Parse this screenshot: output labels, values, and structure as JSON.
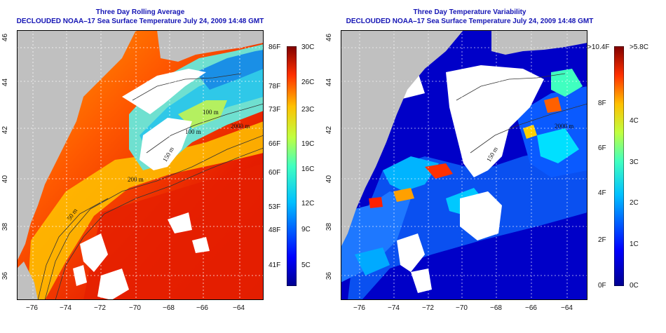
{
  "left_panel": {
    "title_line1": "Three Day Rolling Average",
    "title_line2": "DECLOUDED NOAA–17 Sea Surface Temperature July 24, 2009 14:48 GMT",
    "x_ticks": [
      "−76",
      "−74",
      "−72",
      "−70",
      "−68",
      "−66",
      "−64"
    ],
    "y_ticks": [
      "46",
      "44",
      "42",
      "40",
      "38",
      "36"
    ],
    "contour_labels": [
      "100 m",
      "2000 m",
      "100 m",
      "150 m",
      "200 m",
      "50 m"
    ],
    "colorbar": {
      "fahrenheit": [
        "86F",
        "78F",
        "73F",
        "66F",
        "60F",
        "53F",
        "48F",
        "41F"
      ],
      "celsius": [
        "30C",
        "26C",
        "23C",
        "19C",
        "16C",
        "12C",
        "9C",
        "5C"
      ]
    }
  },
  "right_panel": {
    "title_line1": "Three Day Temperature Variability",
    "title_line2": "DECLOUDED NOAA–17 Sea Surface Temperature July 24, 2009 14:48 GMT",
    "x_ticks": [
      "−76",
      "−74",
      "−72",
      "−70",
      "−68",
      "−66",
      "−64"
    ],
    "y_ticks": [
      "46",
      "44",
      "42",
      "40",
      "38",
      "36"
    ],
    "contour_labels": [
      "2000 m",
      "150 m"
    ],
    "colorbar": {
      "fahrenheit": [
        ">10.4F",
        "8F",
        "6F",
        "4F",
        "2F",
        "0F"
      ],
      "celsius": [
        ">5.8C",
        "4C",
        "3C",
        "2C",
        "1C",
        "0C"
      ]
    }
  },
  "colors": {
    "title": "#1414b4",
    "land": "#c0c0c0",
    "cloud": "#ffffff"
  }
}
